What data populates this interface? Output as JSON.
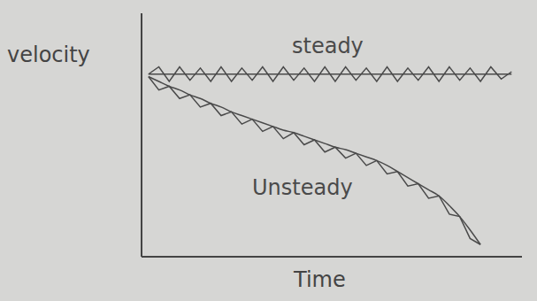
{
  "chart_data": {
    "type": "line",
    "x_label": "Time",
    "y_label": "velocity",
    "xlim": [
      0,
      11
    ],
    "ylim": [
      0,
      10
    ],
    "tick_labels": false,
    "grid": false,
    "x": [
      0.2,
      0.5,
      0.8,
      1.1,
      1.4,
      1.7,
      2.0,
      2.3,
      2.6,
      2.9,
      3.2,
      3.5,
      3.8,
      4.1,
      4.4,
      4.7,
      5.0,
      5.3,
      5.6,
      5.9,
      6.2,
      6.5,
      6.8,
      7.1,
      7.4,
      7.7,
      8.0,
      8.3,
      8.6,
      8.9,
      9.2,
      9.5,
      9.8,
      10.1,
      10.4,
      10.7
    ],
    "series": [
      {
        "name": "steady",
        "color": "#4a4a4a",
        "line_style": "solid",
        "values": [
          7.5,
          7.8,
          7.2,
          7.8,
          7.25,
          7.75,
          7.2,
          7.8,
          7.2,
          7.75,
          7.25,
          7.8,
          7.2,
          7.8,
          7.25,
          7.75,
          7.2,
          7.8,
          7.2,
          7.8,
          7.25,
          7.75,
          7.2,
          7.8,
          7.2,
          7.75,
          7.25,
          7.8,
          7.2,
          7.8,
          7.25,
          7.75,
          7.2,
          7.8,
          7.3,
          7.6
        ],
        "trend": [
          7.5,
          7.5,
          7.5,
          7.5,
          7.5,
          7.5,
          7.5,
          7.5,
          7.5,
          7.5,
          7.5,
          7.5,
          7.5,
          7.5,
          7.5,
          7.5,
          7.5,
          7.5,
          7.5,
          7.5,
          7.5,
          7.5,
          7.5,
          7.5,
          7.5,
          7.5,
          7.5,
          7.5,
          7.5,
          7.5,
          7.5,
          7.5,
          7.5,
          7.5,
          7.5,
          7.5
        ]
      },
      {
        "name": "Unsteady",
        "color": "#4a4a4a",
        "line_style": "solid",
        "values": [
          7.4,
          6.85,
          7.0,
          6.5,
          6.65,
          6.15,
          6.3,
          5.8,
          5.95,
          5.45,
          5.65,
          5.15,
          5.35,
          4.85,
          5.1,
          4.6,
          4.8,
          4.3,
          4.5,
          4.05,
          4.25,
          3.75,
          3.95,
          3.4,
          3.5,
          2.9,
          3.0,
          2.4,
          2.5,
          1.75,
          1.65,
          0.75,
          0.5,
          null,
          null,
          null
        ],
        "trend": [
          7.4,
          7.2,
          7.0,
          6.85,
          6.65,
          6.5,
          6.3,
          6.15,
          5.95,
          5.8,
          5.65,
          5.5,
          5.35,
          5.2,
          5.1,
          4.95,
          4.8,
          4.65,
          4.5,
          4.4,
          4.25,
          4.1,
          3.95,
          3.75,
          3.5,
          3.25,
          3.0,
          2.75,
          2.5,
          2.1,
          1.65,
          1.1,
          0.5,
          null,
          null,
          null
        ]
      }
    ]
  }
}
